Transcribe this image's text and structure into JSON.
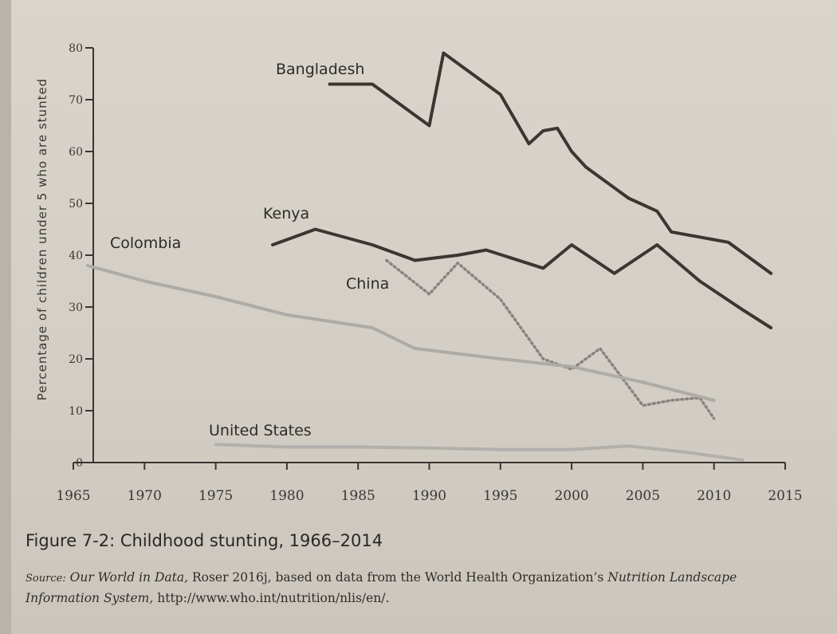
{
  "figure": {
    "caption": "Figure 7-2: Childhood stunting, 1966–2014",
    "source_label": "Source:",
    "source_title": "Our World in Data,",
    "source_text": " Roser 2016j, based on data from the World Health Organization’s ",
    "source_title2": "Nutrition Landscape Information System,",
    "source_url": " http://www.who.int/nutrition/nlis/en/."
  },
  "chart_data": {
    "type": "line",
    "title": "Figure 7-2: Childhood stunting, 1966–2014",
    "xlabel": "",
    "ylabel": "Percentage of children under 5 who are stunted",
    "xlim": [
      1965,
      2015
    ],
    "ylim": [
      0,
      80
    ],
    "x_ticks": [
      1965,
      1970,
      1975,
      1980,
      1985,
      1990,
      1995,
      2000,
      2005,
      2010,
      2015
    ],
    "y_ticks": [
      0,
      10,
      20,
      30,
      40,
      50,
      60,
      70,
      80
    ],
    "grid": false,
    "series": [
      {
        "name": "Bangladesh",
        "style": "solid-dark",
        "color": "#3d3532",
        "x": [
          1983,
          1986,
          1990,
          1991,
          1993,
          1995,
          1997,
          1998,
          1999,
          2000,
          2001,
          2002,
          2004,
          2006,
          2007,
          2011,
          2014
        ],
        "y": [
          73,
          73,
          65,
          79,
          75,
          71,
          61.5,
          64,
          64.5,
          60,
          57,
          55,
          51,
          48.5,
          44.5,
          42.5,
          36.5
        ]
      },
      {
        "name": "Kenya",
        "style": "solid-dark",
        "color": "#3d3532",
        "x": [
          1979,
          1982,
          1986,
          1989,
          1992,
          1994,
          1998,
          2000,
          2003,
          2006,
          2009,
          2012,
          2014
        ],
        "y": [
          42,
          45,
          42,
          39,
          40,
          41,
          37.5,
          42,
          36.5,
          42,
          35,
          29.5,
          26
        ]
      },
      {
        "name": "China",
        "style": "dotted",
        "color": "#8a8280",
        "x": [
          1987,
          1990,
          1992,
          1995,
          1998,
          2000,
          2002,
          2005,
          2007,
          2009,
          2010
        ],
        "y": [
          39,
          32.5,
          38.5,
          31.5,
          20,
          18,
          22,
          11,
          12,
          12.5,
          8.5
        ]
      },
      {
        "name": "Colombia",
        "style": "solid-light",
        "color": "#aeaaa6",
        "x": [
          1966,
          1970,
          1975,
          1980,
          1986,
          1989,
          1995,
          2000,
          2005,
          2010
        ],
        "y": [
          38,
          35,
          32,
          28.5,
          26,
          22,
          20,
          18.5,
          15.5,
          12
        ]
      },
      {
        "name": "United States",
        "style": "solid-light",
        "color": "#b3afab",
        "x": [
          1975,
          1980,
          1985,
          1990,
          1995,
          2000,
          2004,
          2008,
          2012
        ],
        "y": [
          3.5,
          3,
          3,
          2.8,
          2.5,
          2.5,
          3.2,
          2,
          0.5
        ]
      }
    ]
  }
}
